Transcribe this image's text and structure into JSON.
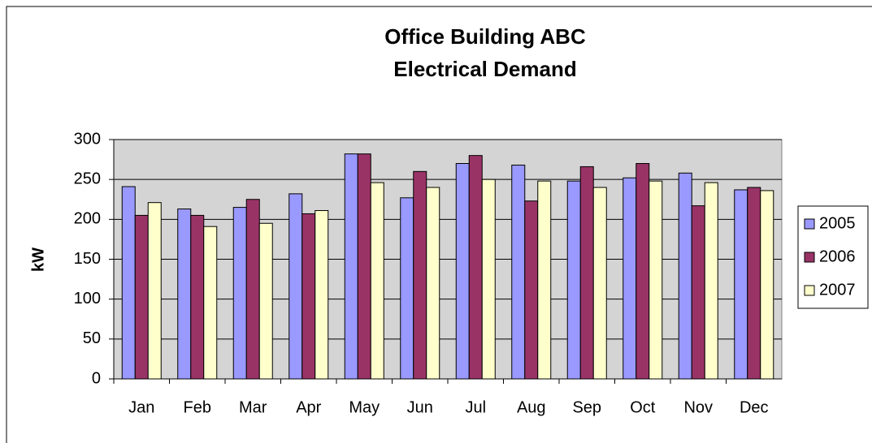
{
  "chart_data": {
    "type": "bar",
    "title": [
      "Office Building ABC",
      "Electrical Demand"
    ],
    "y_label": "kW",
    "categories": [
      "Jan",
      "Feb",
      "Mar",
      "Apr",
      "May",
      "Jun",
      "Jul",
      "Aug",
      "Sep",
      "Oct",
      "Nov",
      "Dec"
    ],
    "series": [
      {
        "name": "2005",
        "color": "#9999ff",
        "values": [
          241,
          213,
          215,
          232,
          282,
          227,
          270,
          268,
          248,
          252,
          258,
          237
        ]
      },
      {
        "name": "2006",
        "color": "#993366",
        "values": [
          205,
          205,
          225,
          207,
          282,
          260,
          280,
          223,
          266,
          270,
          217,
          240
        ]
      },
      {
        "name": "2007",
        "color": "#ffffcc",
        "values": [
          221,
          191,
          195,
          211,
          246,
          240,
          250,
          248,
          240,
          248,
          246,
          236
        ]
      }
    ],
    "ylim": [
      0,
      300
    ],
    "yticks": [
      0,
      50,
      100,
      150,
      200,
      250,
      300
    ],
    "grid": true,
    "legend": "right"
  }
}
